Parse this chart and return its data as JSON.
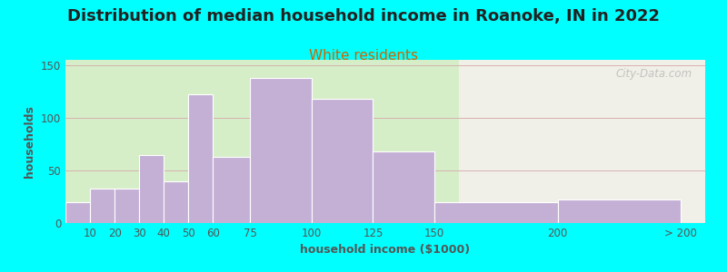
{
  "title": "Distribution of median household income in Roanoke, IN in 2022",
  "subtitle": "White residents",
  "xlabel": "household income ($1000)",
  "ylabel": "households",
  "bar_color": "#c4b0d5",
  "background_color": "#00ffff",
  "plot_bg_left_color": "#d5eec8",
  "plot_bg_right_color": "#f0f0e8",
  "categories": [
    "10",
    "20",
    "30",
    "40",
    "50",
    "60",
    "75",
    "100",
    "125",
    "150",
    "200",
    "> 200"
  ],
  "values": [
    20,
    33,
    33,
    65,
    40,
    122,
    63,
    138,
    118,
    68,
    20,
    22
  ],
  "tick_positions": [
    0,
    10,
    20,
    30,
    40,
    50,
    60,
    75,
    100,
    125,
    150,
    200,
    250
  ],
  "split_x": 160,
  "xlim": [
    0,
    260
  ],
  "ylim": [
    0,
    155
  ],
  "yticks": [
    0,
    50,
    100,
    150
  ],
  "title_fontsize": 13,
  "subtitle_fontsize": 11,
  "axis_label_fontsize": 9,
  "tick_fontsize": 8.5,
  "watermark": "City-Data.com",
  "title_color": "#222222",
  "subtitle_color": "#cc6600",
  "tick_color": "#555555",
  "ylabel_color": "#555555",
  "xlabel_color": "#555555",
  "grid_color": "#d8b0b0",
  "watermark_color": "#b0b0b0"
}
